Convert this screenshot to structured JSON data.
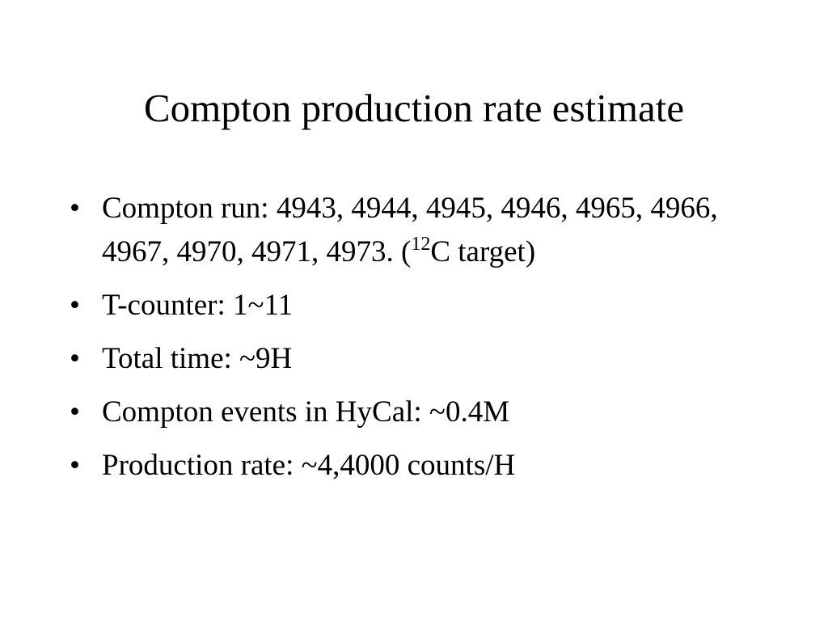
{
  "title": "Compton production rate estimate",
  "bullets": [
    {
      "text": "Compton run: 4943, 4944, 4945, 4946, 4965, 4966, 4967, 4970, 4971, 4973. (",
      "superscript": "12",
      "tail": "C target)"
    },
    {
      "text": "T-counter: 1~11"
    },
    {
      "text": "Total time: ~9H"
    },
    {
      "text": "Compton events in HyCal: ~0.4M"
    },
    {
      "text": "Production rate: ~4,4000 counts/H"
    }
  ]
}
